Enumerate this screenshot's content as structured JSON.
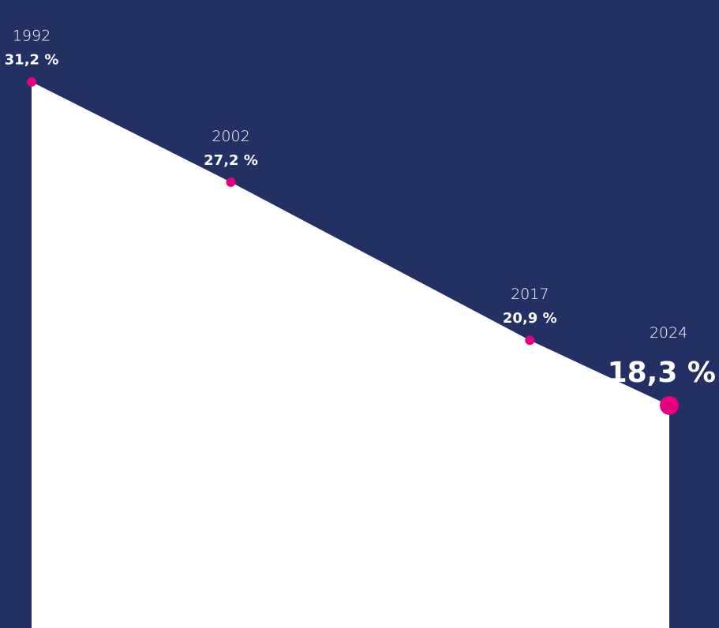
{
  "colors": {
    "background": "#233064",
    "area_fill": "#ffffff",
    "point": "#e5007e",
    "text": "#ffffff"
  },
  "chart_data": {
    "type": "area",
    "title": "",
    "xlabel": "",
    "ylabel": "",
    "x": [
      "1992",
      "2002",
      "2017",
      "2024"
    ],
    "values": [
      31.2,
      27.2,
      20.9,
      18.3
    ],
    "value_labels": [
      "31,2 %",
      "27,2 %",
      "20,9 %",
      "18,3 %"
    ],
    "ylim": [
      0,
      35
    ],
    "grid": false,
    "legend": "none",
    "highlight_last": true
  }
}
